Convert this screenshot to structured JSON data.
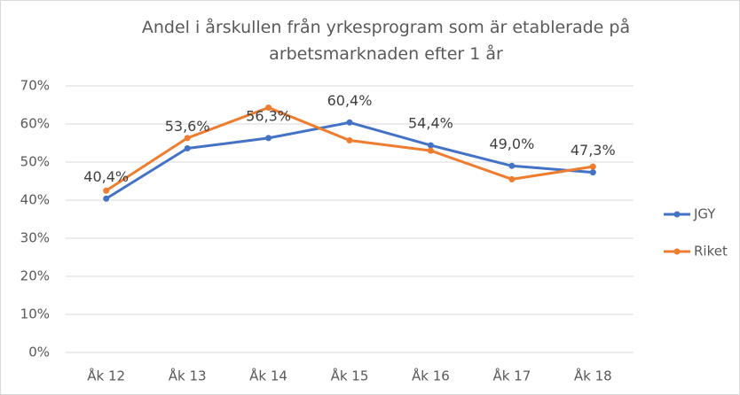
{
  "chart_data": {
    "type": "line",
    "title": "Andel i årskullen från yrkesprogram som är etablerade på arbetsmarknaden efter 1 år",
    "categories": [
      "Åk 12",
      "Åk 13",
      "Åk 14",
      "Åk 15",
      "Åk 16",
      "Åk 17",
      "Åk 18"
    ],
    "series": [
      {
        "name": "JGY",
        "color": "#4472c4",
        "values": [
          40.4,
          53.6,
          56.3,
          60.4,
          54.4,
          49.0,
          47.3
        ],
        "value_labels": [
          "40,4%",
          "53,6%",
          "56,3%",
          "60,4%",
          "54,4%",
          "49,0%",
          "47,3%"
        ]
      },
      {
        "name": "Riket",
        "color": "#ed7d31",
        "values": [
          42.5,
          56.3,
          64.3,
          55.7,
          53.0,
          45.5,
          48.8
        ]
      }
    ],
    "ylim": [
      0,
      70
    ],
    "yticks": [
      {
        "value": 0,
        "label": "0%"
      },
      {
        "value": 10,
        "label": "10%"
      },
      {
        "value": 20,
        "label": "20%"
      },
      {
        "value": 30,
        "label": "30%"
      },
      {
        "value": 40,
        "label": "40%"
      },
      {
        "value": 50,
        "label": "50%"
      },
      {
        "value": 60,
        "label": "60%"
      },
      {
        "value": 70,
        "label": "70%"
      }
    ],
    "grid": true,
    "legend": "right"
  }
}
